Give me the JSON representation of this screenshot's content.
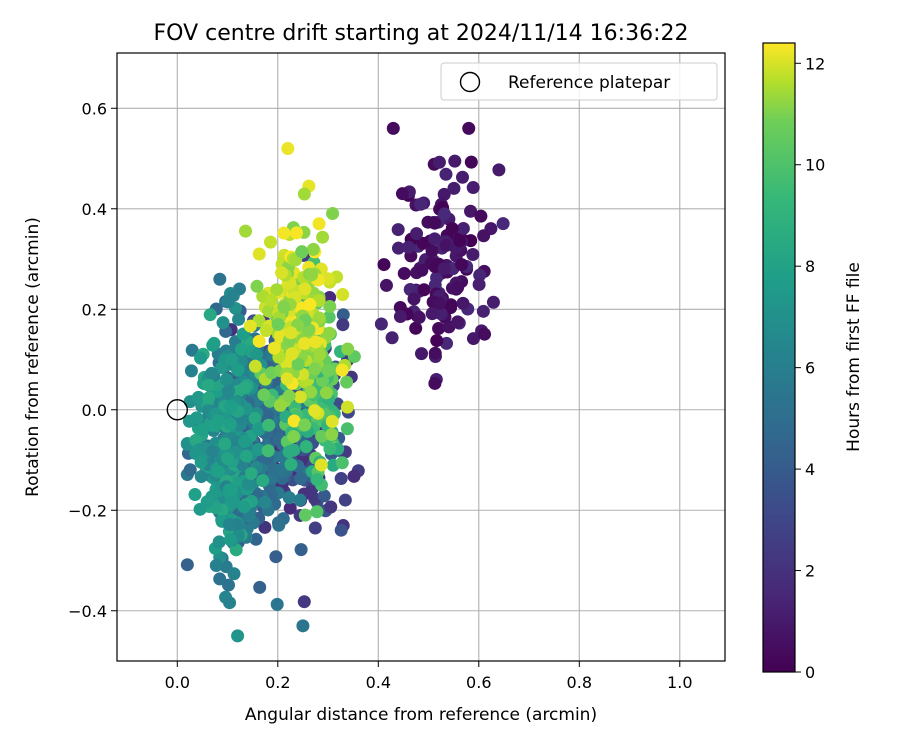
{
  "chart_data": {
    "type": "scatter",
    "title": "FOV centre drift starting at 2024/11/14 16:36:22",
    "xlabel": "Angular distance from reference (arcmin)",
    "ylabel": "Rotation from reference (arcmin)",
    "xlim": [
      -0.12,
      1.09
    ],
    "ylim": [
      -0.5,
      0.71
    ],
    "xticks": [
      "0.0",
      "0.2",
      "0.4",
      "0.6",
      "0.8",
      "1.0"
    ],
    "xtick_values": [
      0.0,
      0.2,
      0.4,
      0.6,
      0.8,
      1.0
    ],
    "yticks": [
      "−0.4",
      "−0.2",
      "0.0",
      "0.2",
      "0.4",
      "0.6"
    ],
    "ytick_values": [
      -0.4,
      -0.2,
      0.0,
      0.2,
      0.4,
      0.6
    ],
    "grid": true,
    "legend": {
      "position": "top-right",
      "entries": [
        "Reference platepar"
      ]
    },
    "reference_point": {
      "x": 0.0,
      "y": 0.0,
      "marker": "open-circle"
    },
    "colorbar": {
      "label": "Hours from first FF file",
      "colormap": "viridis",
      "range": [
        0,
        12.4
      ],
      "ticks": [
        "0",
        "2",
        "4",
        "6",
        "8",
        "10",
        "12"
      ],
      "tick_values": [
        0,
        2,
        4,
        6,
        8,
        10,
        12
      ]
    },
    "clusters": [
      {
        "hours": [
          0.0,
          1.6
        ],
        "x_center": 0.53,
        "x_spread": 0.07,
        "y_center": 0.3,
        "y_spread": 0.13,
        "count": 140
      },
      {
        "hours": [
          1.6,
          4.2
        ],
        "x_center": 0.23,
        "x_spread": 0.07,
        "y_center": 0.0,
        "y_spread": 0.15,
        "count": 280
      },
      {
        "hours": [
          4.2,
          6.0
        ],
        "x_center": 0.15,
        "x_spread": 0.06,
        "y_center": -0.05,
        "y_spread": 0.15,
        "count": 280
      },
      {
        "hours": [
          6.0,
          8.5
        ],
        "x_center": 0.1,
        "x_spread": 0.04,
        "y_center": -0.05,
        "y_spread": 0.14,
        "count": 300
      },
      {
        "hours": [
          8.5,
          10.8
        ],
        "x_center": 0.27,
        "x_spread": 0.05,
        "y_center": 0.05,
        "y_spread": 0.12,
        "count": 130
      },
      {
        "hours": [
          10.8,
          12.4
        ],
        "x_center": 0.24,
        "x_spread": 0.05,
        "y_center": 0.18,
        "y_spread": 0.12,
        "count": 220
      }
    ],
    "series_note_points": [
      {
        "x": 0.22,
        "y": 0.52,
        "hours": 12.2
      },
      {
        "x": 0.58,
        "y": 0.56,
        "hours": 0.3
      },
      {
        "x": 0.12,
        "y": -0.45,
        "hours": 7.2
      },
      {
        "x": 0.25,
        "y": -0.43,
        "hours": 5.5
      }
    ]
  }
}
